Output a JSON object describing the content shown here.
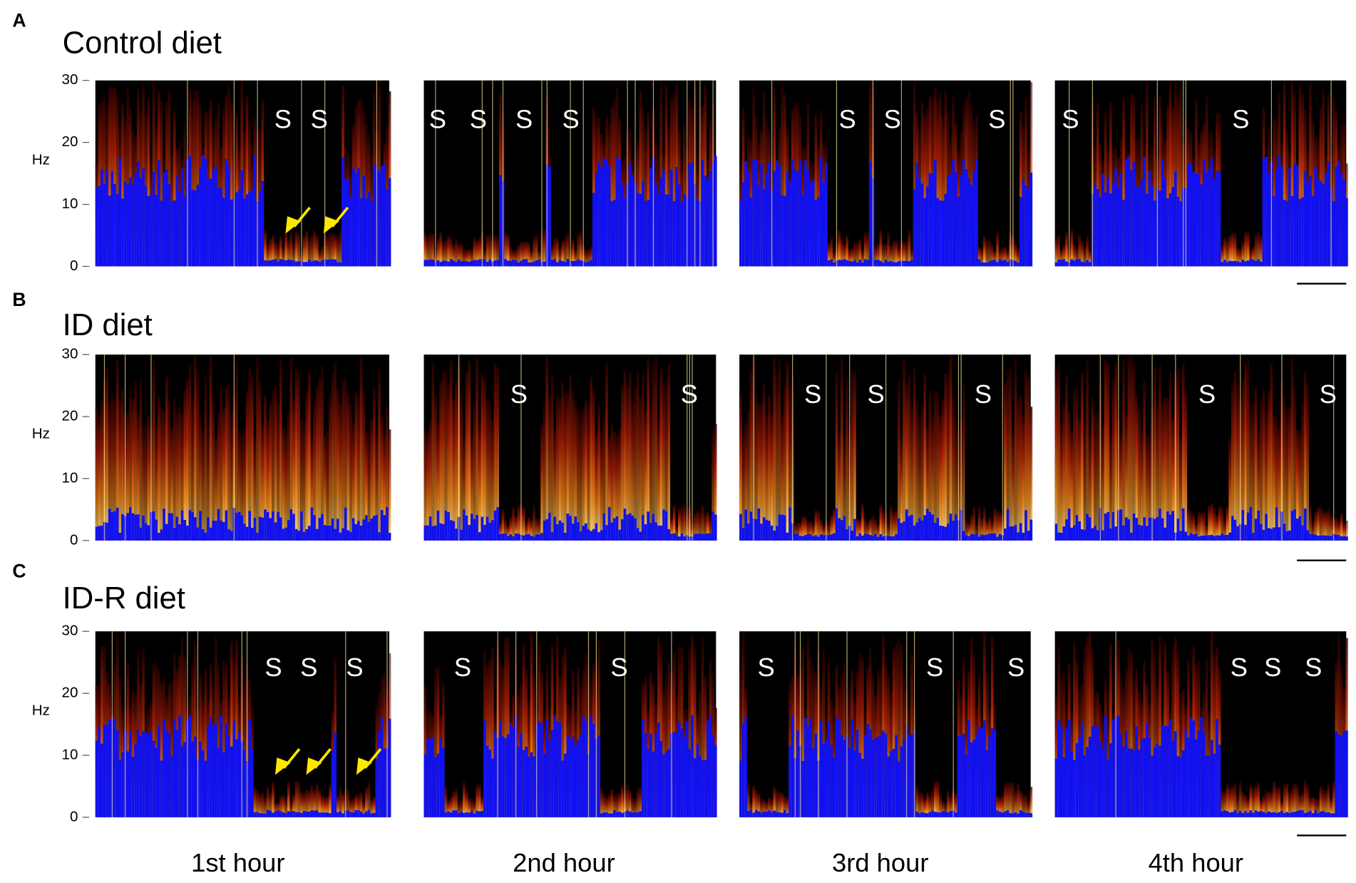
{
  "panels": [
    {
      "letter": "A",
      "title": "Control diet",
      "y_axis": {
        "label": "Hz",
        "ticks": [
          0,
          10,
          20,
          30
        ]
      },
      "spectrograms": [
        {
          "markers": [
            "S",
            "S"
          ]
        },
        {
          "markers": [
            "S",
            "S",
            "S",
            "S"
          ]
        },
        {
          "markers": [
            "S",
            "S",
            "S"
          ]
        },
        {
          "markers": [
            "S",
            "S"
          ]
        }
      ]
    },
    {
      "letter": "B",
      "title": "ID diet",
      "y_axis": {
        "label": "Hz",
        "ticks": [
          0,
          10,
          20,
          30
        ]
      },
      "spectrograms": [
        {
          "markers": []
        },
        {
          "markers": [
            "S",
            "S"
          ]
        },
        {
          "markers": [
            "S",
            "S",
            "S"
          ]
        },
        {
          "markers": [
            "S",
            "S"
          ]
        }
      ]
    },
    {
      "letter": "C",
      "title": "ID-R diet",
      "y_axis": {
        "label": "Hz",
        "ticks": [
          0,
          10,
          20,
          30
        ]
      },
      "spectrograms": [
        {
          "markers": [
            "S",
            "S",
            "S"
          ]
        },
        {
          "markers": [
            "S",
            "S"
          ]
        },
        {
          "markers": [
            "S",
            "S",
            "S"
          ]
        },
        {
          "markers": [
            "S",
            "S",
            "S"
          ]
        }
      ]
    }
  ],
  "x_labels": [
    "1st hour",
    "2nd hour",
    "3rd hour",
    "4th hour"
  ]
}
